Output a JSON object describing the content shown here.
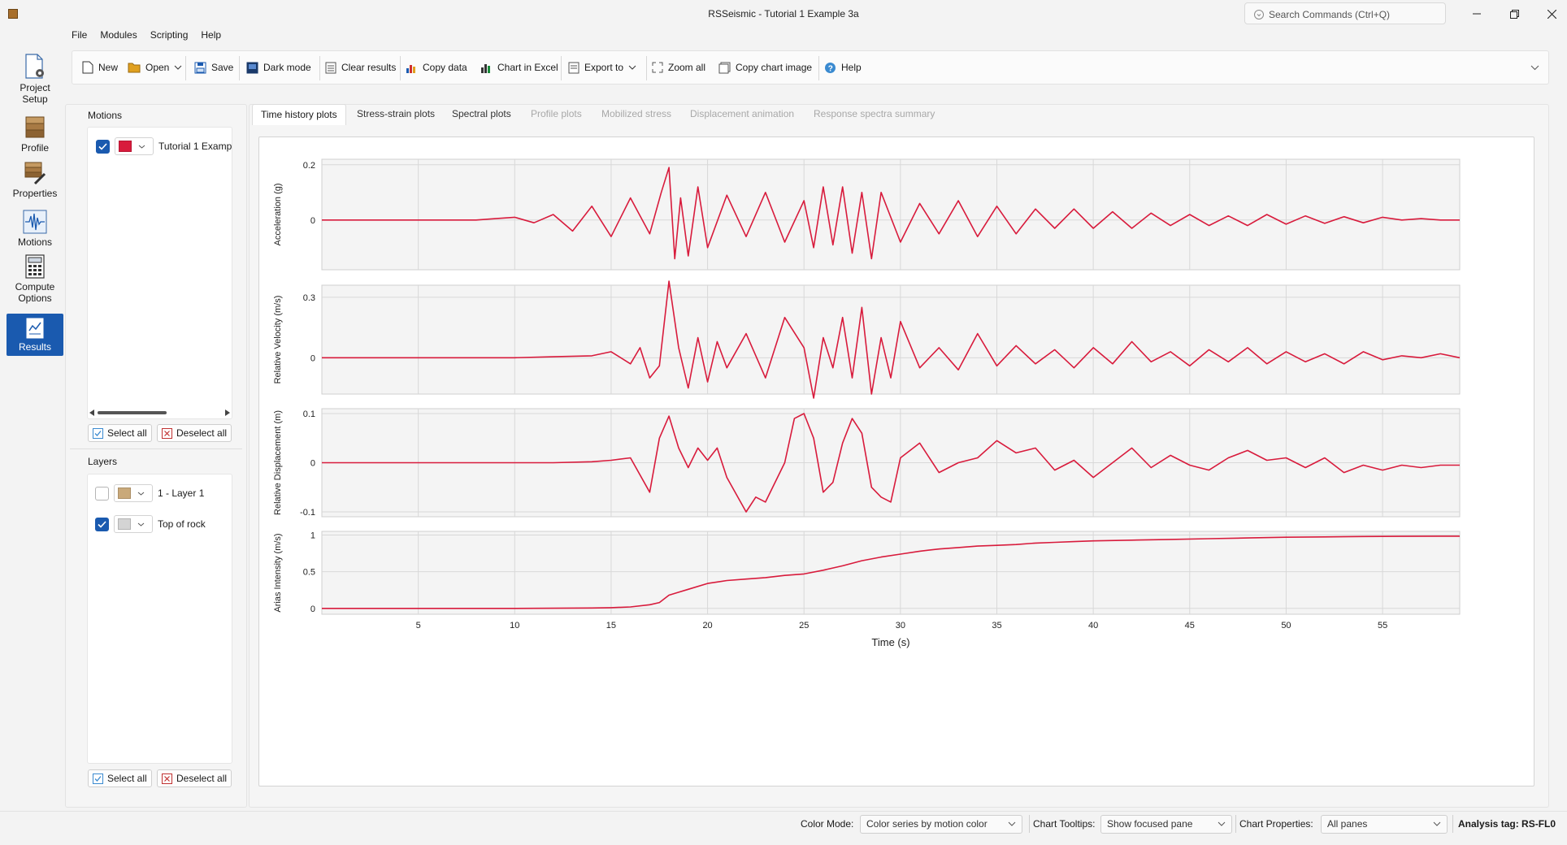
{
  "window": {
    "title": "RSSeismic - Tutorial 1 Example 3a",
    "search_placeholder": "Search Commands (Ctrl+Q)"
  },
  "menu": [
    "File",
    "Modules",
    "Scripting",
    "Help"
  ],
  "nav": {
    "project_setup": "Project Setup",
    "profile": "Profile",
    "properties": "Properties",
    "motions": "Motions",
    "compute_options": "Compute Options",
    "results": "Results"
  },
  "toolbar": {
    "new": "New",
    "open": "Open",
    "save": "Save",
    "dark_mode": "Dark mode",
    "clear_results": "Clear results",
    "copy_data": "Copy data",
    "chart_in_excel": "Chart in Excel",
    "export_to": "Export to",
    "zoom_all": "Zoom all",
    "copy_chart_image": "Copy chart image",
    "help": "Help"
  },
  "motions_panel": {
    "title": "Motions",
    "items": [
      {
        "label": "Tutorial 1 Examp",
        "checked": true,
        "color": "#d81b3c"
      }
    ],
    "select_all": "Select all",
    "deselect_all": "Deselect all"
  },
  "layers_panel": {
    "title": "Layers",
    "items": [
      {
        "label": "1 - Layer 1",
        "checked": false,
        "color": "#c9a97a"
      },
      {
        "label": "Top of rock",
        "checked": true,
        "color": "#d4d4d4"
      }
    ],
    "select_all": "Select all",
    "deselect_all": "Deselect all"
  },
  "tabs": [
    {
      "label": "Time history plots",
      "state": "active"
    },
    {
      "label": "Stress-strain plots",
      "state": "normal"
    },
    {
      "label": "Spectral plots",
      "state": "normal"
    },
    {
      "label": "Profile plots",
      "state": "disabled"
    },
    {
      "label": "Mobilized stress",
      "state": "disabled"
    },
    {
      "label": "Displacement animation",
      "state": "disabled"
    },
    {
      "label": "Response spectra summary",
      "state": "disabled"
    }
  ],
  "statusbar": {
    "color_mode_label": "Color Mode:",
    "color_mode_value": "Color series by motion color",
    "chart_tooltips_label": "Chart Tooltips:",
    "chart_tooltips_value": "Show focused pane",
    "chart_properties_label": "Chart Properties:",
    "chart_properties_value": "All panes",
    "analysis_tag": "Analysis tag: RS-FL0"
  },
  "chart_data": {
    "type": "line",
    "series_color": "#d81b3c",
    "x": {
      "label": "Time (s)",
      "range": [
        0,
        59
      ],
      "ticks": [
        5,
        10,
        15,
        20,
        25,
        30,
        35,
        40,
        45,
        50,
        55
      ]
    },
    "grid": true,
    "panes": [
      {
        "ylabel": "Acceleration (g)",
        "ylim": [
          -0.18,
          0.22
        ],
        "yticks": [
          "0.2",
          "0"
        ],
        "ytick_values": [
          0.2,
          0
        ],
        "series": {
          "x": [
            0,
            2,
            4,
            6,
            8,
            9,
            10,
            11,
            12,
            13,
            14,
            15,
            16,
            17,
            17.6,
            18,
            18.3,
            18.6,
            19,
            19.5,
            20,
            21,
            22,
            23,
            24,
            25,
            25.5,
            26,
            26.5,
            27,
            27.5,
            28,
            28.5,
            29,
            30,
            31,
            32,
            33,
            34,
            35,
            36,
            37,
            38,
            39,
            40,
            41,
            42,
            43,
            44,
            45,
            46,
            47,
            48,
            49,
            50,
            51,
            52,
            53,
            54,
            55,
            56,
            57,
            58,
            59
          ],
          "y": [
            0,
            0,
            0,
            0,
            0,
            0.005,
            0.01,
            -0.01,
            0.02,
            -0.04,
            0.05,
            -0.06,
            0.08,
            -0.05,
            0.1,
            0.19,
            -0.14,
            0.08,
            -0.13,
            0.12,
            -0.1,
            0.09,
            -0.06,
            0.1,
            -0.08,
            0.07,
            -0.1,
            0.12,
            -0.09,
            0.12,
            -0.12,
            0.1,
            -0.14,
            0.1,
            -0.08,
            0.06,
            -0.05,
            0.07,
            -0.06,
            0.05,
            -0.05,
            0.04,
            -0.03,
            0.04,
            -0.03,
            0.03,
            -0.03,
            0.025,
            -0.02,
            0.02,
            -0.02,
            0.015,
            -0.02,
            0.02,
            -0.015,
            0.015,
            -0.012,
            0.012,
            -0.01,
            0.01,
            0,
            0.005,
            0,
            0
          ]
        }
      },
      {
        "ylabel": "Relative Velocity (m/s)",
        "ylim": [
          -0.18,
          0.36
        ],
        "yticks": [
          "0.3",
          "0"
        ],
        "ytick_values": [
          0.3,
          0
        ],
        "series": {
          "x": [
            0,
            2,
            4,
            6,
            8,
            10,
            12,
            14,
            15,
            16,
            16.5,
            17,
            17.5,
            18,
            18.5,
            19,
            19.5,
            20,
            20.5,
            21,
            22,
            23,
            24,
            25,
            25.5,
            26,
            26.5,
            27,
            27.5,
            28,
            28.5,
            29,
            29.5,
            30,
            31,
            32,
            33,
            34,
            35,
            36,
            37,
            38,
            39,
            40,
            41,
            42,
            43,
            44,
            45,
            46,
            47,
            48,
            49,
            50,
            51,
            52,
            53,
            54,
            55,
            56,
            57,
            58,
            59
          ],
          "y": [
            0,
            0,
            0,
            0,
            0,
            0,
            0.005,
            0.01,
            0.03,
            -0.03,
            0.05,
            -0.1,
            -0.04,
            0.38,
            0.05,
            -0.15,
            0.1,
            -0.12,
            0.08,
            -0.05,
            0.12,
            -0.1,
            0.2,
            0.05,
            -0.2,
            0.1,
            -0.05,
            0.2,
            -0.1,
            0.25,
            -0.18,
            0.1,
            -0.1,
            0.18,
            -0.05,
            0.05,
            -0.06,
            0.12,
            -0.04,
            0.06,
            -0.03,
            0.04,
            -0.05,
            0.05,
            -0.03,
            0.08,
            -0.02,
            0.03,
            -0.04,
            0.04,
            -0.02,
            0.05,
            -0.03,
            0.03,
            -0.02,
            0.02,
            -0.03,
            0.03,
            -0.01,
            0.01,
            0,
            0.02,
            0
          ]
        }
      },
      {
        "ylabel": "Relative Displacement (m)",
        "ylim": [
          -0.11,
          0.11
        ],
        "yticks": [
          "0.1",
          "0",
          "-0.1"
        ],
        "ytick_values": [
          0.1,
          0,
          -0.1
        ],
        "series": {
          "x": [
            0,
            5,
            10,
            12,
            14,
            15,
            16,
            17,
            17.5,
            18,
            18.5,
            19,
            19.5,
            20,
            20.5,
            21,
            22,
            22.5,
            23,
            24,
            24.5,
            25,
            25.5,
            26,
            26.5,
            27,
            27.5,
            28,
            28.5,
            29,
            29.5,
            30,
            31,
            32,
            33,
            34,
            35,
            36,
            37,
            38,
            39,
            40,
            41,
            42,
            43,
            44,
            45,
            46,
            47,
            48,
            49,
            50,
            51,
            52,
            53,
            54,
            55,
            56,
            57,
            58,
            59
          ],
          "y": [
            0,
            0,
            0,
            0,
            0.002,
            0.005,
            0.01,
            -0.06,
            0.05,
            0.095,
            0.03,
            -0.01,
            0.03,
            0.005,
            0.03,
            -0.03,
            -0.1,
            -0.07,
            -0.08,
            0,
            0.09,
            0.1,
            0.05,
            -0.06,
            -0.04,
            0.04,
            0.09,
            0.06,
            -0.05,
            -0.07,
            -0.08,
            0.01,
            0.04,
            -0.02,
            0,
            0.01,
            0.045,
            0.02,
            0.03,
            -0.015,
            0.005,
            -0.03,
            0,
            0.03,
            -0.01,
            0.015,
            -0.005,
            -0.015,
            0.01,
            0.025,
            0.005,
            0.01,
            -0.01,
            0.01,
            -0.02,
            -0.005,
            -0.015,
            -0.005,
            -0.01,
            -0.005,
            -0.005
          ]
        }
      },
      {
        "ylabel": "Arias Intensity (m/s)",
        "ylim": [
          -0.08,
          1.05
        ],
        "yticks": [
          "1",
          "0.5",
          "0"
        ],
        "ytick_values": [
          1,
          0.5,
          0
        ],
        "series": {
          "x": [
            0,
            10,
            14,
            15,
            16,
            17,
            17.5,
            18,
            18.5,
            19,
            20,
            21,
            22,
            23,
            24,
            25,
            26,
            27,
            28,
            29,
            30,
            31,
            32,
            33,
            34,
            35,
            36,
            37,
            38,
            39,
            40,
            42,
            44,
            46,
            48,
            50,
            52,
            54,
            56,
            58,
            59
          ],
          "y": [
            0,
            0,
            0.005,
            0.01,
            0.02,
            0.05,
            0.08,
            0.18,
            0.22,
            0.26,
            0.34,
            0.38,
            0.4,
            0.42,
            0.45,
            0.47,
            0.52,
            0.58,
            0.65,
            0.7,
            0.74,
            0.78,
            0.81,
            0.83,
            0.85,
            0.86,
            0.87,
            0.89,
            0.9,
            0.91,
            0.92,
            0.93,
            0.94,
            0.95,
            0.96,
            0.97,
            0.975,
            0.98,
            0.982,
            0.985,
            0.985
          ]
        }
      }
    ]
  }
}
